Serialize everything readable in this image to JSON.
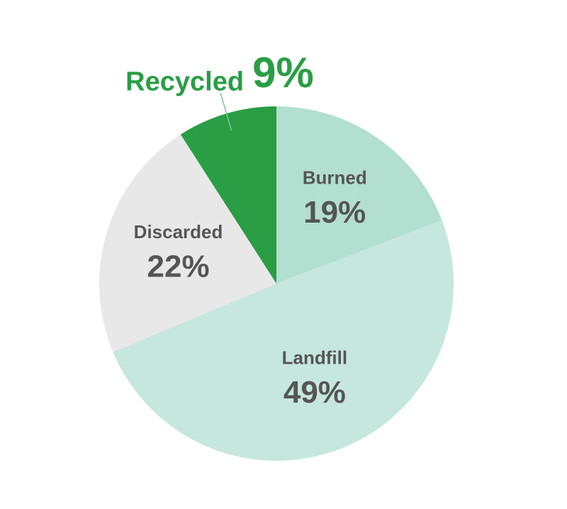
{
  "chart_data": {
    "type": "pie",
    "categories": [
      "Burned",
      "Landfill",
      "Discarded",
      "Recycled"
    ],
    "values": [
      19,
      49,
      22,
      9
    ],
    "value_labels": [
      "19%",
      "49%",
      "22%",
      "9%"
    ],
    "colors": [
      "#b2dfd0",
      "#c6e7dd",
      "#e8e8e8",
      "#2a9d45"
    ]
  }
}
